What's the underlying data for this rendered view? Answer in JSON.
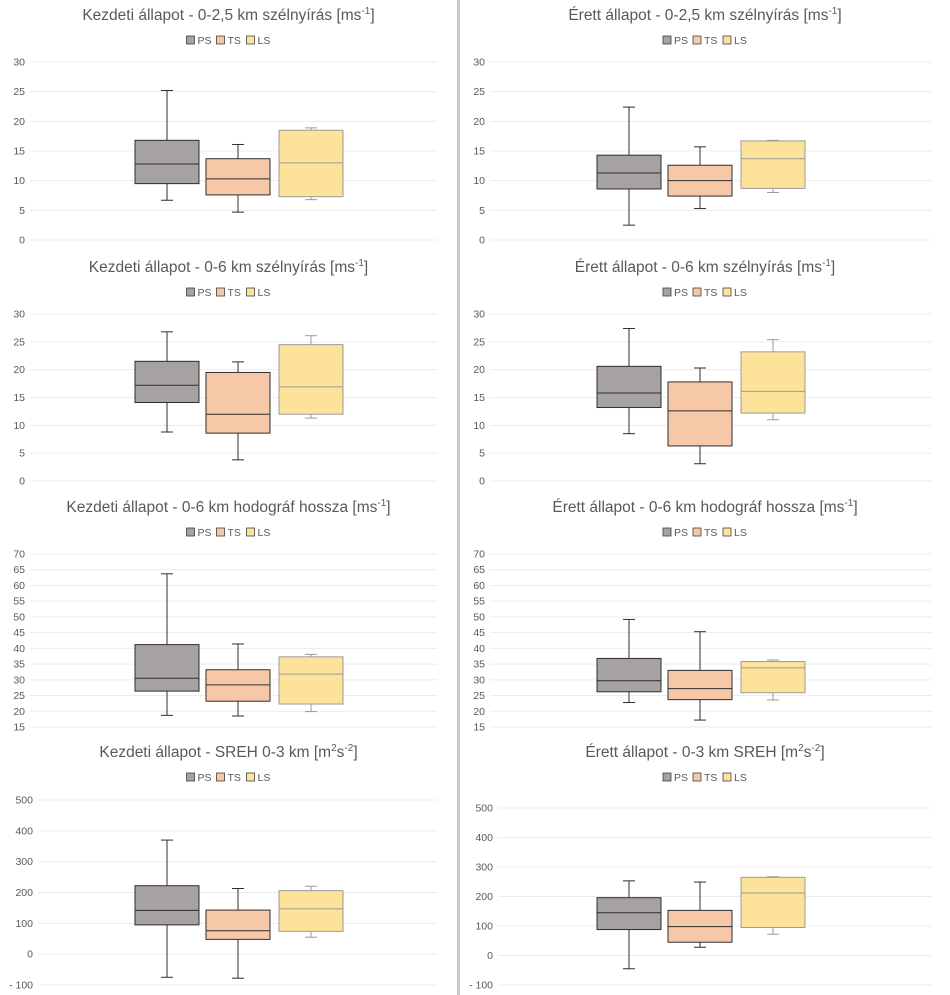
{
  "legend": [
    {
      "name": "PS",
      "color": "#a6a2a2"
    },
    {
      "name": "TS",
      "color": "#f7c8a8"
    },
    {
      "name": "LS",
      "color": "#fde39a"
    }
  ],
  "chart_data": [
    {
      "type": "box",
      "title": "Kezdeti állapot - 0-2,5 km szélnyírás [ms",
      "title_sup": "-1",
      "title_end": "]",
      "ylim": [
        0,
        30
      ],
      "yticks": [
        0,
        5,
        10,
        15,
        20,
        25,
        30
      ],
      "ytick_labels": [
        "0",
        "5",
        "10",
        "15",
        "20",
        "25",
        "30"
      ],
      "grid": true,
      "legend_position": "top-center",
      "series": [
        {
          "name": "PS",
          "min": 6.7,
          "q1": 9.5,
          "median": 12.8,
          "q3": 16.8,
          "max": 25.2
        },
        {
          "name": "TS",
          "min": 4.7,
          "q1": 7.6,
          "median": 10.3,
          "q3": 13.7,
          "max": 16.1
        },
        {
          "name": "LS",
          "min": 6.8,
          "q1": 7.3,
          "median": 13.0,
          "q3": 18.5,
          "max": 18.9
        }
      ]
    },
    {
      "type": "box",
      "title": "Érett állapot - 0-2,5 km szélnyírás [ms",
      "title_sup": "-1",
      "title_end": "]",
      "ylim": [
        0,
        30
      ],
      "yticks": [
        0,
        5,
        10,
        15,
        20,
        25,
        30
      ],
      "ytick_labels": [
        "0",
        "5",
        "10",
        "15",
        "20",
        "25",
        "30"
      ],
      "grid": true,
      "legend_position": "top-center",
      "series": [
        {
          "name": "PS",
          "min": 2.5,
          "q1": 8.6,
          "median": 11.3,
          "q3": 14.3,
          "max": 22.4
        },
        {
          "name": "TS",
          "min": 5.3,
          "q1": 7.4,
          "median": 10.0,
          "q3": 12.6,
          "max": 15.7
        },
        {
          "name": "LS",
          "min": 8.0,
          "q1": 8.7,
          "median": 13.7,
          "q3": 16.7,
          "max": 16.8
        }
      ]
    },
    {
      "type": "box",
      "title": "Kezdeti állapot - 0-6 km szélnyírás [ms",
      "title_sup": "-1",
      "title_end": "]",
      "ylim": [
        0,
        30
      ],
      "yticks": [
        0,
        5,
        10,
        15,
        20,
        25,
        30
      ],
      "ytick_labels": [
        "0",
        "5",
        "10",
        "15",
        "20",
        "25",
        "30"
      ],
      "grid": true,
      "legend_position": "top-center",
      "series": [
        {
          "name": "PS",
          "min": 8.8,
          "q1": 14.1,
          "median": 17.2,
          "q3": 21.5,
          "max": 26.8
        },
        {
          "name": "TS",
          "min": 3.8,
          "q1": 8.6,
          "median": 12.0,
          "q3": 19.5,
          "max": 21.4
        },
        {
          "name": "LS",
          "min": 11.3,
          "q1": 12.0,
          "median": 16.9,
          "q3": 24.5,
          "max": 26.1
        }
      ]
    },
    {
      "type": "box",
      "title": "Érett állapot - 0-6 km szélnyírás [ms",
      "title_sup": "-1",
      "title_end": "]",
      "ylim": [
        0,
        30
      ],
      "yticks": [
        0,
        5,
        10,
        15,
        20,
        25,
        30
      ],
      "ytick_labels": [
        "0",
        "5",
        "10",
        "15",
        "20",
        "25",
        "30"
      ],
      "grid": true,
      "legend_position": "top-center",
      "series": [
        {
          "name": "PS",
          "min": 8.5,
          "q1": 13.2,
          "median": 15.8,
          "q3": 20.6,
          "max": 27.4
        },
        {
          "name": "TS",
          "min": 3.1,
          "q1": 6.3,
          "median": 12.6,
          "q3": 17.8,
          "max": 20.3
        },
        {
          "name": "LS",
          "min": 11.0,
          "q1": 12.2,
          "median": 16.1,
          "q3": 23.2,
          "max": 25.4
        }
      ]
    },
    {
      "type": "box",
      "title": "Kezdeti állapot - 0-6 km hodográf hossza [ms",
      "title_sup": "-1",
      "title_end": "]",
      "ylim": [
        15,
        70
      ],
      "yticks": [
        15,
        20,
        25,
        30,
        35,
        40,
        45,
        50,
        55,
        60,
        65,
        70
      ],
      "ytick_labels": [
        "15",
        "20",
        "25",
        "30",
        "35",
        "40",
        "45",
        "50",
        "55",
        "60",
        "65",
        "70"
      ],
      "grid": true,
      "legend_position": "top-center",
      "series": [
        {
          "name": "PS",
          "min": 18.7,
          "q1": 26.4,
          "median": 30.5,
          "q3": 41.2,
          "max": 63.7
        },
        {
          "name": "TS",
          "min": 18.5,
          "q1": 23.2,
          "median": 28.4,
          "q3": 33.2,
          "max": 41.4
        },
        {
          "name": "LS",
          "min": 19.9,
          "q1": 22.3,
          "median": 31.8,
          "q3": 37.3,
          "max": 38.1
        }
      ]
    },
    {
      "type": "box",
      "title": "Érett állapot - 0-6 km hodográf hossza [ms",
      "title_sup": "-1",
      "title_end": "]",
      "ylim": [
        15,
        70
      ],
      "yticks": [
        15,
        20,
        25,
        30,
        35,
        40,
        45,
        50,
        55,
        60,
        65,
        70
      ],
      "ytick_labels": [
        "15",
        "20",
        "25",
        "30",
        "35",
        "40",
        "45",
        "50",
        "55",
        "60",
        "65",
        "70"
      ],
      "grid": true,
      "legend_position": "top-center",
      "series": [
        {
          "name": "PS",
          "min": 22.8,
          "q1": 26.2,
          "median": 29.7,
          "q3": 36.8,
          "max": 49.2
        },
        {
          "name": "TS",
          "min": 17.2,
          "q1": 23.7,
          "median": 27.2,
          "q3": 33.0,
          "max": 45.3
        },
        {
          "name": "LS",
          "min": 23.6,
          "q1": 25.9,
          "median": 33.8,
          "q3": 35.8,
          "max": 36.3
        }
      ]
    },
    {
      "type": "box",
      "title": "Kezdeti állapot - SREH 0-3 km [m",
      "title_sup": "2",
      "title_mid": "s",
      "title_sup2": "-2",
      "title_end": "]",
      "ylim": [
        -100,
        500
      ],
      "yticks": [
        -100,
        0,
        100,
        200,
        300,
        400,
        500
      ],
      "ytick_labels": [
        "- 100",
        "0",
        "100",
        "200",
        "300",
        "400",
        "500"
      ],
      "grid": true,
      "legend_position": "top-center",
      "series": [
        {
          "name": "PS",
          "min": -75,
          "q1": 95,
          "median": 142,
          "q3": 222,
          "max": 370
        },
        {
          "name": "TS",
          "min": -78,
          "q1": 48,
          "median": 76,
          "q3": 143,
          "max": 213
        },
        {
          "name": "LS",
          "min": 55,
          "q1": 74,
          "median": 147,
          "q3": 206,
          "max": 220
        }
      ]
    },
    {
      "type": "box",
      "title": "Érett állapot - 0-3 km SREH [m",
      "title_sup": "2",
      "title_mid": "s",
      "title_sup2": "-2",
      "title_end": "]",
      "ylim": [
        -100,
        500
      ],
      "yticks": [
        -100,
        0,
        100,
        200,
        300,
        400,
        500
      ],
      "ytick_labels": [
        "- 100",
        "0",
        "100",
        "200",
        "300",
        "400",
        "500"
      ],
      "grid": true,
      "legend_position": "top-center",
      "series": [
        {
          "name": "PS",
          "min": -45,
          "q1": 88,
          "median": 145,
          "q3": 196,
          "max": 253
        },
        {
          "name": "TS",
          "min": 28,
          "q1": 45,
          "median": 98,
          "q3": 153,
          "max": 249
        },
        {
          "name": "LS",
          "min": 72,
          "q1": 95,
          "median": 212,
          "q3": 265,
          "max": 267
        }
      ]
    }
  ]
}
